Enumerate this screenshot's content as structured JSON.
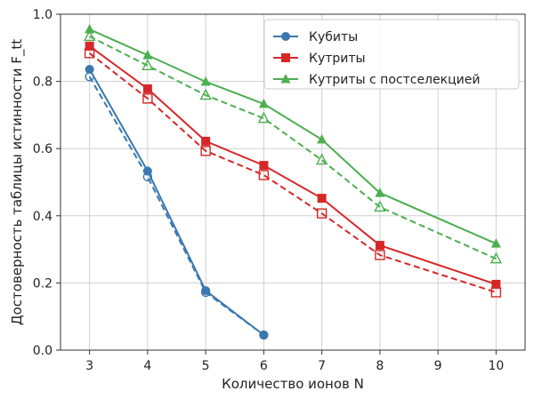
{
  "chart_data": {
    "type": "line",
    "title": "",
    "xlabel": "Количество ионов N",
    "ylabel": "Достоверность таблицы истинности F_tt",
    "xlim": [
      2.5,
      10.5
    ],
    "ylim": [
      0.0,
      1.0
    ],
    "xticks": [
      "3",
      "4",
      "5",
      "6",
      "7",
      "8",
      "9",
      "10"
    ],
    "yticks": [
      "0.0",
      "0.2",
      "0.4",
      "0.6",
      "0.8",
      "1.0"
    ],
    "grid": true,
    "legend_position": "top-right",
    "series": [
      {
        "name": "Кубиты",
        "color": "#3a78b0",
        "marker": "circle",
        "style": "solid",
        "x": [
          3,
          4,
          5,
          6
        ],
        "y": [
          0.836,
          0.533,
          0.177,
          0.045
        ]
      },
      {
        "color": "#3a78b0",
        "marker": "circle-open",
        "style": "dashed",
        "x": [
          3,
          4,
          5,
          6
        ],
        "y": [
          0.814,
          0.516,
          0.172,
          0.045
        ]
      },
      {
        "name": "Кутриты",
        "color": "#d62728",
        "marker": "square",
        "style": "solid",
        "x": [
          3,
          4,
          5,
          6,
          7,
          8,
          10
        ],
        "y": [
          0.905,
          0.778,
          0.622,
          0.55,
          0.452,
          0.312,
          0.196
        ]
      },
      {
        "color": "#d62728",
        "marker": "square-open",
        "style": "dashed",
        "x": [
          3,
          4,
          5,
          6,
          7,
          8,
          10
        ],
        "y": [
          0.884,
          0.749,
          0.593,
          0.521,
          0.407,
          0.283,
          0.172
        ]
      },
      {
        "name": "Кутриты с постселекцией",
        "color": "#4caf50",
        "marker": "triangle",
        "style": "solid",
        "x": [
          3,
          4,
          5,
          6,
          7,
          8,
          10
        ],
        "y": [
          0.955,
          0.878,
          0.799,
          0.733,
          0.627,
          0.468,
          0.317
        ]
      },
      {
        "color": "#4caf50",
        "marker": "triangle-open",
        "style": "dashed",
        "x": [
          3,
          4,
          5,
          6,
          7,
          8,
          10
        ],
        "y": [
          0.934,
          0.847,
          0.759,
          0.69,
          0.566,
          0.426,
          0.272
        ]
      }
    ]
  }
}
